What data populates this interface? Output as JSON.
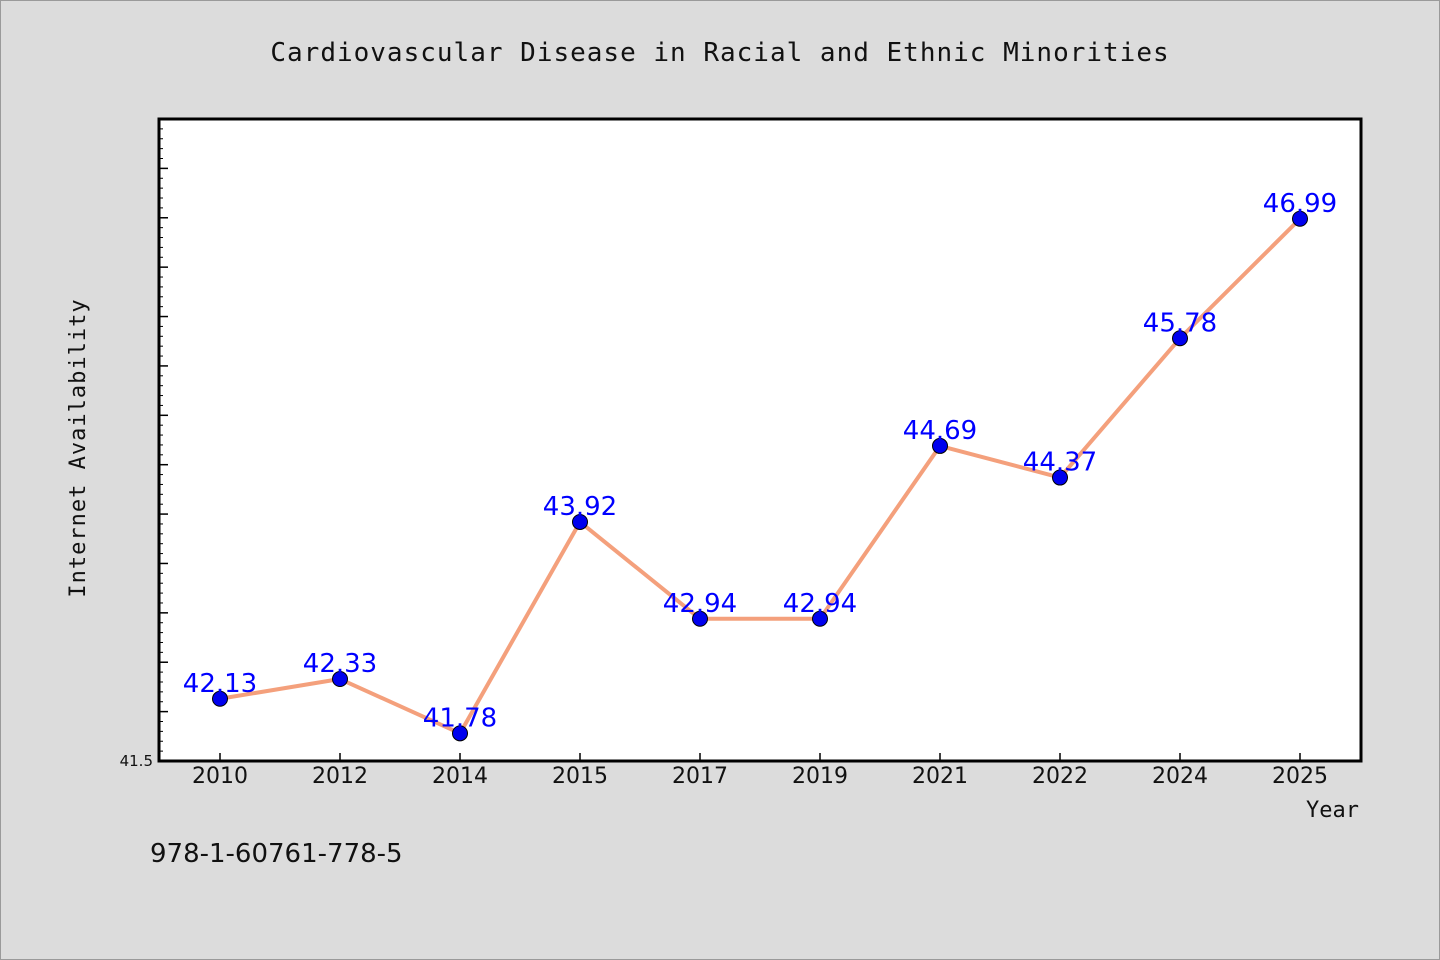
{
  "chart_data": {
    "type": "line",
    "title": "Cardiovascular Disease in Racial and Ethnic Minorities",
    "xlabel": "Year",
    "ylabel": "Internet Availability",
    "categories": [
      "2010",
      "2012",
      "2014",
      "2015",
      "2017",
      "2019",
      "2021",
      "2022",
      "2024",
      "2025"
    ],
    "series": [
      {
        "values": [
          42.13,
          42.33,
          41.78,
          43.92,
          42.94,
          42.94,
          44.69,
          44.37,
          45.78,
          46.99
        ],
        "labels": [
          "42.13",
          "42.33",
          "41.78",
          "43.92",
          "42.94",
          "42.94",
          "44.69",
          "44.37",
          "45.78",
          "46.99"
        ]
      }
    ],
    "y_tick_labels": [
      "41.5"
    ],
    "ylim": [
      41.5,
      48.0
    ],
    "grid": false,
    "line_color": "#f4a07c",
    "marker_color": "#0000ee",
    "label_color": "#0000ff"
  },
  "footer_text": "978-1-60761-778-5"
}
